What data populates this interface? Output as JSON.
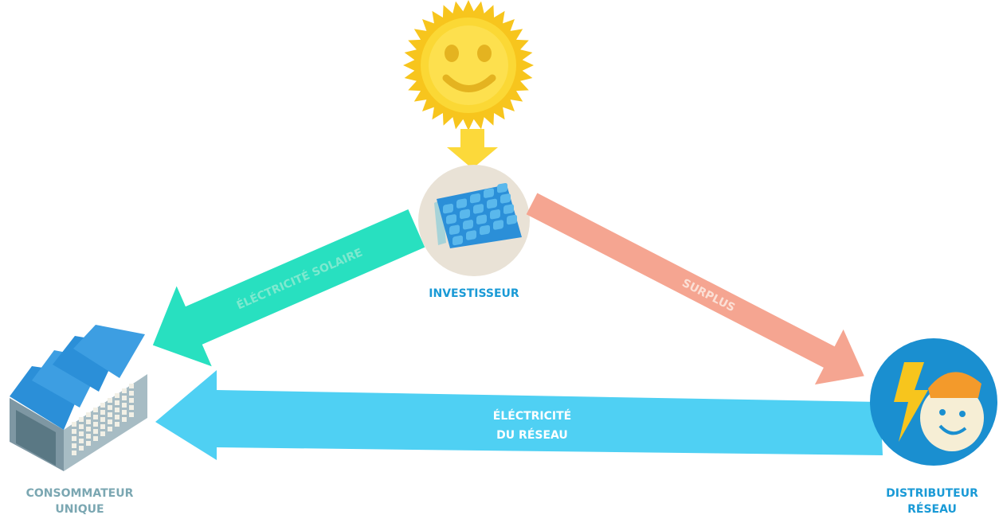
{
  "nodes": [
    {
      "label": [
        "INVESTISSEUR"
      ]
    },
    {
      "label": [
        "CONSOMMATEUR",
        "UNIQUE"
      ]
    },
    {
      "label": [
        "DISTRIBUTEUR",
        "RÉSEAU"
      ]
    }
  ],
  "arrows": [
    {
      "label": [
        "ÉLÉCTRICITÉ SOLAIRE"
      ]
    },
    {
      "label": [
        "SURPLUS"
      ]
    },
    {
      "label": [
        "ÉLÉCTRICITÉ",
        "DU RÉSEAU"
      ]
    }
  ]
}
